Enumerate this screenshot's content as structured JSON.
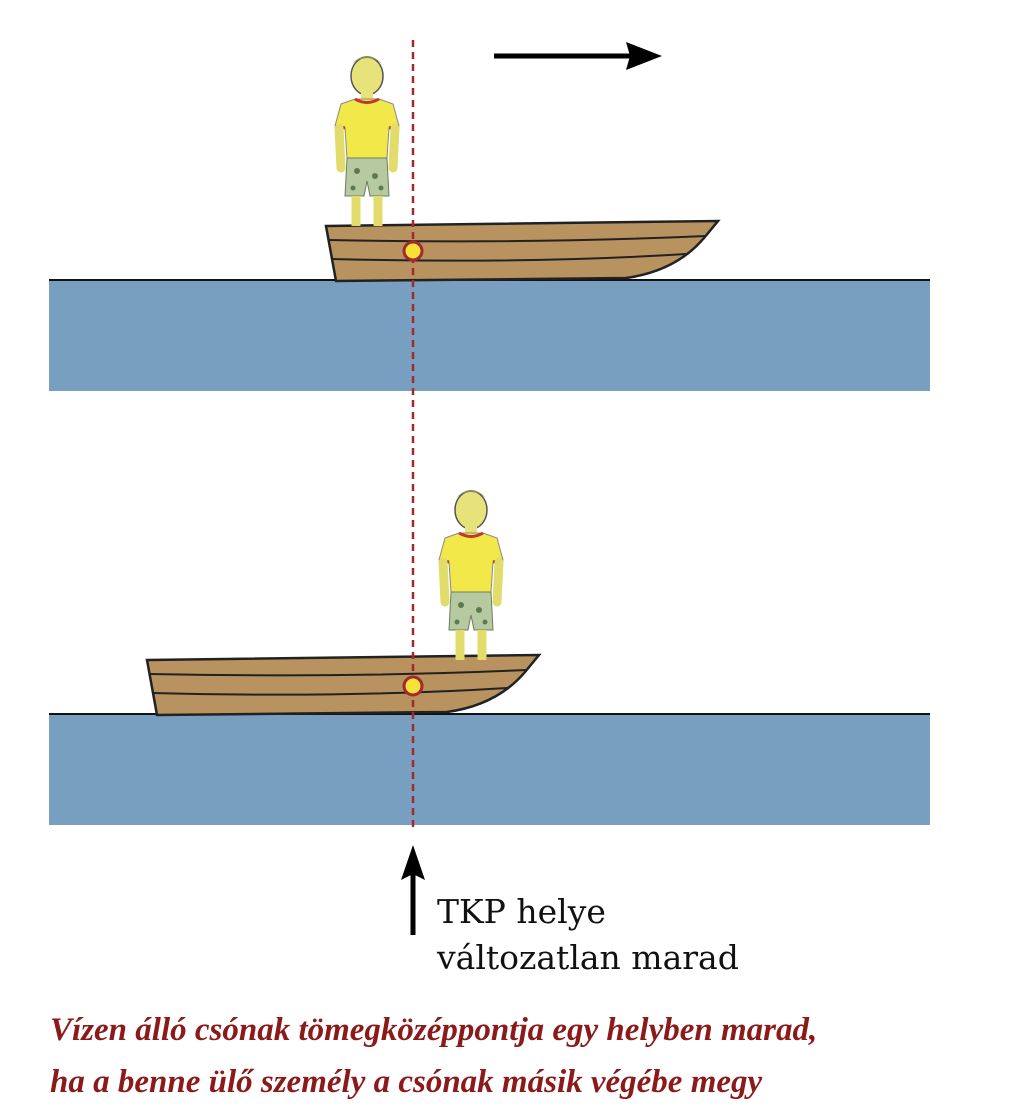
{
  "label": {
    "line1": "TKP helye",
    "line2": "változatlan marad"
  },
  "caption": {
    "line1": "Vízen álló csónak tömegközéppontja egy helyben marad,",
    "line2": "ha a benne ülő személy a csónak másik végébe megy"
  },
  "colors": {
    "water": "#789fbf",
    "boat": "#b8925f",
    "center_line": "#a32a2a",
    "center_point": "#f7e23a",
    "shirt": "#f2e84a",
    "arrow": "#000000"
  },
  "icons": {
    "motion_arrow": "arrow-right-icon",
    "pointer_arrow": "arrow-up-icon"
  }
}
